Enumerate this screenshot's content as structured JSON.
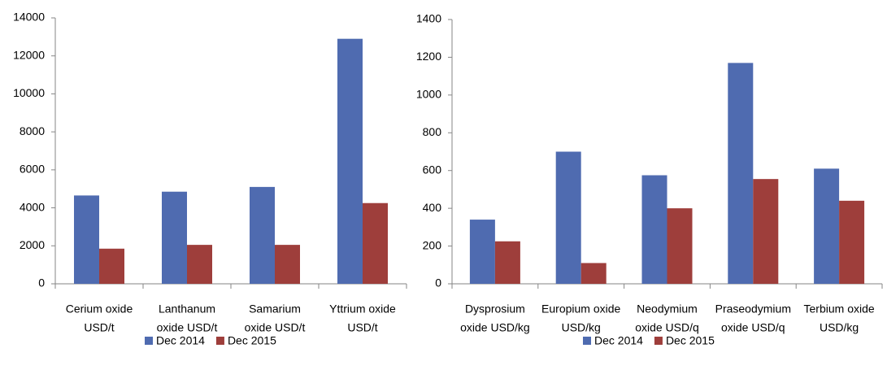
{
  "chart_data": [
    {
      "type": "bar",
      "categories": [
        [
          "Cerium oxide",
          "USD/t"
        ],
        [
          "Lanthanum",
          "oxide USD/t"
        ],
        [
          "Samarium",
          "oxide USD/t"
        ],
        [
          "Yttrium oxide",
          "USD/t"
        ]
      ],
      "series": [
        {
          "name": "Dec 2014",
          "color": "#4f6bb0",
          "values": [
            4650,
            4850,
            5100,
            12900
          ]
        },
        {
          "name": "Dec 2015",
          "color": "#9e3e3b",
          "values": [
            1850,
            2050,
            2050,
            4250
          ]
        }
      ],
      "ylim": [
        0,
        14000
      ],
      "yticks": [
        0,
        2000,
        4000,
        6000,
        8000,
        10000,
        12000,
        14000
      ],
      "legend": "bottom"
    },
    {
      "type": "bar",
      "categories": [
        [
          "Dysprosium",
          "oxide USD/kg"
        ],
        [
          "Europium oxide",
          "USD/kg"
        ],
        [
          "Neodymium",
          "oxide USD/q"
        ],
        [
          "Praseodymium",
          "oxide USD/q"
        ],
        [
          "Terbium oxide",
          "USD/kg"
        ]
      ],
      "series": [
        {
          "name": "Dec 2014",
          "color": "#4f6bb0",
          "values": [
            340,
            700,
            575,
            1170,
            610
          ]
        },
        {
          "name": "Dec 2015",
          "color": "#9e3e3b",
          "values": [
            225,
            110,
            400,
            555,
            440
          ]
        }
      ],
      "ylim": [
        0,
        1400
      ],
      "yticks": [
        0,
        200,
        400,
        600,
        800,
        1000,
        1200,
        1400
      ],
      "legend": "bottom"
    }
  ]
}
